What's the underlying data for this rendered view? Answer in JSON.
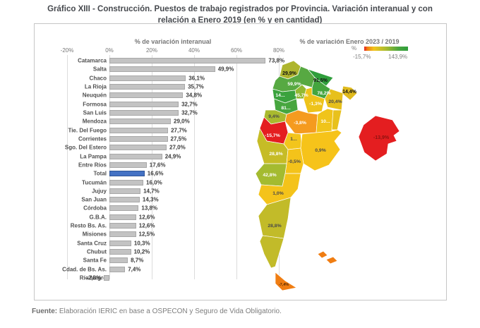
{
  "title": {
    "text": "Gráfico XIII - Construcción. Puestos de trabajo registrados por Provincia. Variación interanual y con relación a Enero 2019 (en % y en cantidad)"
  },
  "footer": {
    "label": "Fuente:",
    "text": " Elaboración IERIC en base a OSPECON y Seguro de Vida Obligatorio."
  },
  "colors": {
    "bar": "#c3c3c3",
    "highlight": "#4472c4",
    "scale_min": "#e41e20",
    "scale_max": "#2f9e3c"
  },
  "chart_data": [
    {
      "type": "bar",
      "orientation": "horizontal",
      "title": "% de variación interanual",
      "x_ticks": [
        "-20%",
        "0%",
        "20%",
        "40%",
        "60%",
        "80%"
      ],
      "x_range": [
        -20,
        80
      ],
      "grid": true,
      "highlight_category": "Total",
      "rows": [
        {
          "name": "Catamarca",
          "value": 73.8,
          "label": "73,8%"
        },
        {
          "name": "Salta",
          "value": 49.9,
          "label": "49,9%"
        },
        {
          "name": "Chaco",
          "value": 36.1,
          "label": "36,1%"
        },
        {
          "name": "La Rioja",
          "value": 35.7,
          "label": "35,7%"
        },
        {
          "name": "Neuquén",
          "value": 34.8,
          "label": "34,8%"
        },
        {
          "name": "Formosa",
          "value": 32.7,
          "label": "32,7%"
        },
        {
          "name": "San Luis",
          "value": 32.7,
          "label": "32,7%"
        },
        {
          "name": "Mendoza",
          "value": 29.0,
          "label": "29,0%"
        },
        {
          "name": "Tie. Del Fuego",
          "value": 27.7,
          "label": "27,7%"
        },
        {
          "name": "Corrientes",
          "value": 27.5,
          "label": "27,5%"
        },
        {
          "name": "Sgo. Del Estero",
          "value": 27.0,
          "label": "27,0%"
        },
        {
          "name": "La Pampa",
          "value": 24.9,
          "label": "24,9%"
        },
        {
          "name": "Entre Ríos",
          "value": 17.6,
          "label": "17,6%"
        },
        {
          "name": "Total",
          "value": 16.6,
          "label": "16,6%",
          "highlight": true
        },
        {
          "name": "Tucumán",
          "value": 16.0,
          "label": "16,0%"
        },
        {
          "name": "Jujuy",
          "value": 14.7,
          "label": "14,7%"
        },
        {
          "name": "San Juan",
          "value": 14.3,
          "label": "14,3%"
        },
        {
          "name": "Córdoba",
          "value": 13.8,
          "label": "13,8%"
        },
        {
          "name": "G.B.A.",
          "value": 12.6,
          "label": "12,6%"
        },
        {
          "name": "Resto Bs. As.",
          "value": 12.6,
          "label": "12,6%"
        },
        {
          "name": "Misiones",
          "value": 12.5,
          "label": "12,5%"
        },
        {
          "name": "Santa Cruz",
          "value": 10.3,
          "label": "10,3%"
        },
        {
          "name": "Chubut",
          "value": 10.2,
          "label": "10,2%"
        },
        {
          "name": "Santa Fe",
          "value": 8.7,
          "label": "8,7%"
        },
        {
          "name": "Cdad. de Bs. As.",
          "value": 7.4,
          "label": "7,4%"
        },
        {
          "name": "Río Negro",
          "value": -2.6,
          "label": "-2,6%"
        }
      ]
    },
    {
      "type": "choropleth",
      "title": "% de variación Enero 2023 / 2019",
      "legend": {
        "units_label": "%",
        "min_label": "-15,7%",
        "max_label": "143,9%"
      },
      "regions": [
        {
          "id": "jujuy",
          "label": "29,9%",
          "value": 29.9,
          "fill": "#aeb52e",
          "style": "darkbold"
        },
        {
          "id": "salta",
          "label": "59,9%",
          "value": 59.9,
          "fill": "#57a942",
          "style": "white"
        },
        {
          "id": "formosa",
          "label": "91,5%",
          "value": 91.5,
          "fill": "#2f9e3c",
          "style": "darkbold"
        },
        {
          "id": "chaco",
          "label": "78,2%",
          "value": 78.2,
          "fill": "#44a53e",
          "style": "white"
        },
        {
          "id": "misiones",
          "label": "14,4%",
          "value": 14.4,
          "fill": "#e0ba1c",
          "style": "darkbold"
        },
        {
          "id": "corrientes",
          "label": "20,4%",
          "value": 20.4,
          "fill": "#e7c01b",
          "style": "dark"
        },
        {
          "id": "tucuman",
          "label": "45,7%",
          "value": 45.7,
          "fill": "#93b931",
          "style": "white"
        },
        {
          "id": "santiago-del-estero",
          "label": "-1,3%",
          "value": -1.3,
          "fill": "#eec31a",
          "style": "white"
        },
        {
          "id": "catamarca",
          "label": "14...",
          "value": null,
          "fill": "#3ba23e",
          "style": "white"
        },
        {
          "id": "la-rioja",
          "label": "81...",
          "value": null,
          "fill": "#47a63f",
          "style": "white"
        },
        {
          "id": "cuyo-north",
          "label": "9,4%",
          "value": 9.4,
          "fill": "#a9ba2e",
          "style": "dark"
        },
        {
          "id": "cordoba",
          "label": "-3,8%",
          "value": -3.8,
          "fill": "#f59b1f",
          "style": "white"
        },
        {
          "id": "santa-fe",
          "label": "10...",
          "value": null,
          "fill": "#f0c41a",
          "style": "white"
        },
        {
          "id": "entre-rios",
          "label": "",
          "value": null,
          "fill": "#e8c11c",
          "style": "dark"
        },
        {
          "id": "san-juan",
          "label": "-15,7%",
          "value": -15.7,
          "fill": "#e41e20",
          "style": "white"
        },
        {
          "id": "san-luis",
          "label": "1...",
          "value": null,
          "fill": "#f2c51c",
          "style": "dark"
        },
        {
          "id": "mendoza",
          "label": "28,8%",
          "value": 28.8,
          "fill": "#c6bc26",
          "style": "white"
        },
        {
          "id": "buenos-aires",
          "label": "0,9%",
          "value": 0.9,
          "fill": "#f6c31a",
          "style": "dark"
        },
        {
          "id": "la-pampa",
          "label": "-0,5%",
          "value": -0.5,
          "fill": "#f4c31a",
          "style": "dark"
        },
        {
          "id": "neuquen",
          "label": "42,8%",
          "value": 42.8,
          "fill": "#a4bb30",
          "style": "white"
        },
        {
          "id": "rio-negro",
          "label": "1,0%",
          "value": 1.0,
          "fill": "#f4c31a",
          "style": "dark"
        },
        {
          "id": "chubut",
          "label": "28,8%",
          "value": 28.8,
          "fill": "#c2bb29",
          "style": "dark"
        },
        {
          "id": "santa-cruz",
          "label": "",
          "value": null,
          "fill": "#c2bb29",
          "style": "dark"
        },
        {
          "id": "tierra-del-fuego",
          "label": "-7,4%",
          "value": -7.4,
          "fill": "#f07d12",
          "style": "tiny"
        },
        {
          "id": "islas-malvinas-1",
          "label": "",
          "value": null,
          "fill": "#f07d12",
          "style": "dark"
        },
        {
          "id": "islas-malvinas-2",
          "label": "",
          "value": null,
          "fill": "#f07d12",
          "style": "dark"
        },
        {
          "id": "caba",
          "label": "-13,9%",
          "value": -13.9,
          "fill": "#e41e20",
          "style": "darkred"
        }
      ]
    }
  ]
}
